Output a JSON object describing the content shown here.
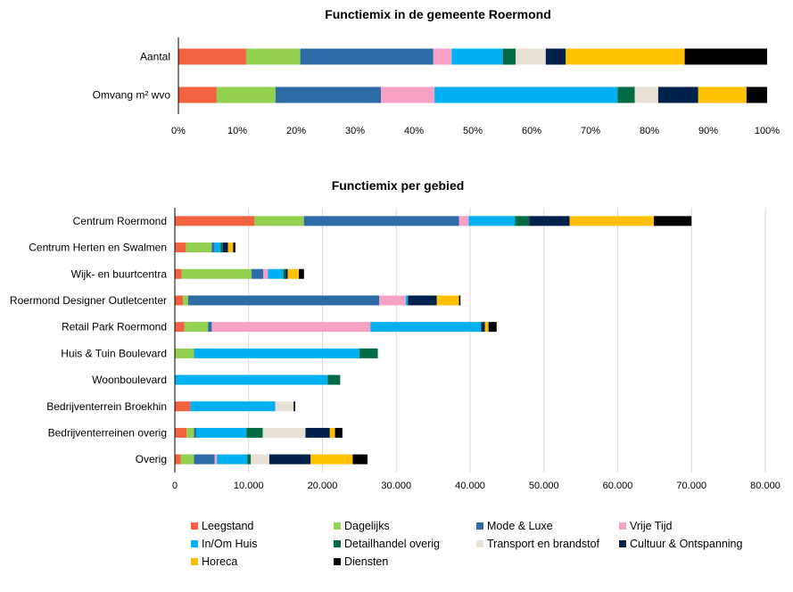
{
  "chart_data": [
    {
      "type": "bar",
      "orientation": "horizontal",
      "stacked": "percent",
      "title": "Functiemix in de gemeente Roermond",
      "categories": [
        "Aantal",
        "Omvang m² wvo"
      ],
      "xlim": [
        0,
        100
      ],
      "ticks": [
        "0%",
        "10%",
        "20%",
        "30%",
        "40%",
        "50%",
        "60%",
        "70%",
        "80%",
        "90%",
        "100%"
      ],
      "grid": false,
      "series": [
        {
          "name": "Leegstand",
          "values": [
            11.5,
            6.5
          ]
        },
        {
          "name": "Dagelijks",
          "values": [
            9.2,
            10.0
          ]
        },
        {
          "name": "Mode & Luxe",
          "values": [
            22.6,
            17.9
          ]
        },
        {
          "name": "Vrije Tijd",
          "values": [
            3.1,
            9.1
          ]
        },
        {
          "name": "In/Om Huis",
          "values": [
            8.7,
            31.1
          ]
        },
        {
          "name": "Detailhandel overig",
          "values": [
            2.2,
            2.9
          ]
        },
        {
          "name": "Transport en brandstof",
          "values": [
            5.1,
            4.0
          ]
        },
        {
          "name": "Cultuur & Ontspanning",
          "values": [
            3.4,
            6.8
          ]
        },
        {
          "name": "Horeca",
          "values": [
            20.2,
            8.2
          ]
        },
        {
          "name": "Diensten",
          "values": [
            14.0,
            3.5
          ]
        }
      ]
    },
    {
      "type": "bar",
      "orientation": "horizontal",
      "stacked": true,
      "title": "Functiemix per gebied",
      "categories": [
        "Centrum Roermond",
        "Centrum Herten en Swalmen",
        "Wijk- en buurtcentra",
        "Roermond Designer Outletcenter",
        "Retail Park Roermond",
        "Huis & Tuin Boulevard",
        "Woonboulevard",
        "Bedrijventerrein Broekhin",
        "Bedrijventerreinen overig",
        "Overig"
      ],
      "xlim": [
        0,
        80000
      ],
      "ticks": [
        "0",
        "10.000",
        "20.000",
        "30.000",
        "40.000",
        "50.000",
        "60.000",
        "70.000",
        "80.000"
      ],
      "grid": true,
      "series": [
        {
          "name": "Leegstand",
          "values": [
            10800,
            1500,
            900,
            1100,
            1300,
            0,
            0,
            2100,
            1600,
            800
          ]
        },
        {
          "name": "Dagelijks",
          "values": [
            6700,
            3500,
            9500,
            700,
            3200,
            2600,
            0,
            0,
            1000,
            1800
          ]
        },
        {
          "name": "Mode & Luxe",
          "values": [
            21000,
            400,
            1600,
            25900,
            500,
            0,
            0,
            0,
            300,
            2800
          ]
        },
        {
          "name": "Vrije Tijd",
          "values": [
            1300,
            0,
            600,
            3600,
            21500,
            0,
            0,
            0,
            0,
            300
          ]
        },
        {
          "name": "In/Om Huis",
          "values": [
            6300,
            800,
            2100,
            300,
            15000,
            22400,
            20700,
            11500,
            6800,
            4100
          ]
        },
        {
          "name": "Detailhandel overig",
          "values": [
            1900,
            300,
            300,
            0,
            0,
            2500,
            1700,
            0,
            2200,
            500
          ]
        },
        {
          "name": "Transport en brandstof",
          "values": [
            0,
            0,
            0,
            0,
            0,
            0,
            0,
            2500,
            5800,
            2500
          ]
        },
        {
          "name": "Cultuur & Ontspanning",
          "values": [
            5500,
            700,
            300,
            3900,
            500,
            0,
            0,
            0,
            3300,
            5600
          ]
        },
        {
          "name": "Horeca",
          "values": [
            11400,
            700,
            1500,
            3000,
            500,
            0,
            0,
            0,
            700,
            5700
          ]
        },
        {
          "name": "Diensten",
          "values": [
            5100,
            300,
            700,
            200,
            1100,
            0,
            0,
            200,
            1000,
            2000
          ]
        }
      ]
    }
  ],
  "legend": [
    {
      "label": "Leegstand",
      "color": "#f26140"
    },
    {
      "label": "Dagelijks",
      "color": "#92d050"
    },
    {
      "label": "Mode & Luxe",
      "color": "#2e6ca8"
    },
    {
      "label": "Vrije Tijd",
      "color": "#f7a1c4"
    },
    {
      "label": "In/Om Huis",
      "color": "#00b0f0"
    },
    {
      "label": "Detailhandel overig",
      "color": "#006b45"
    },
    {
      "label": "Transport en brandstof",
      "color": "#e8e0d4"
    },
    {
      "label": "Cultuur & Ontspanning",
      "color": "#00224a"
    },
    {
      "label": "Horeca",
      "color": "#ffc000"
    },
    {
      "label": "Diensten",
      "color": "#000000"
    }
  ]
}
